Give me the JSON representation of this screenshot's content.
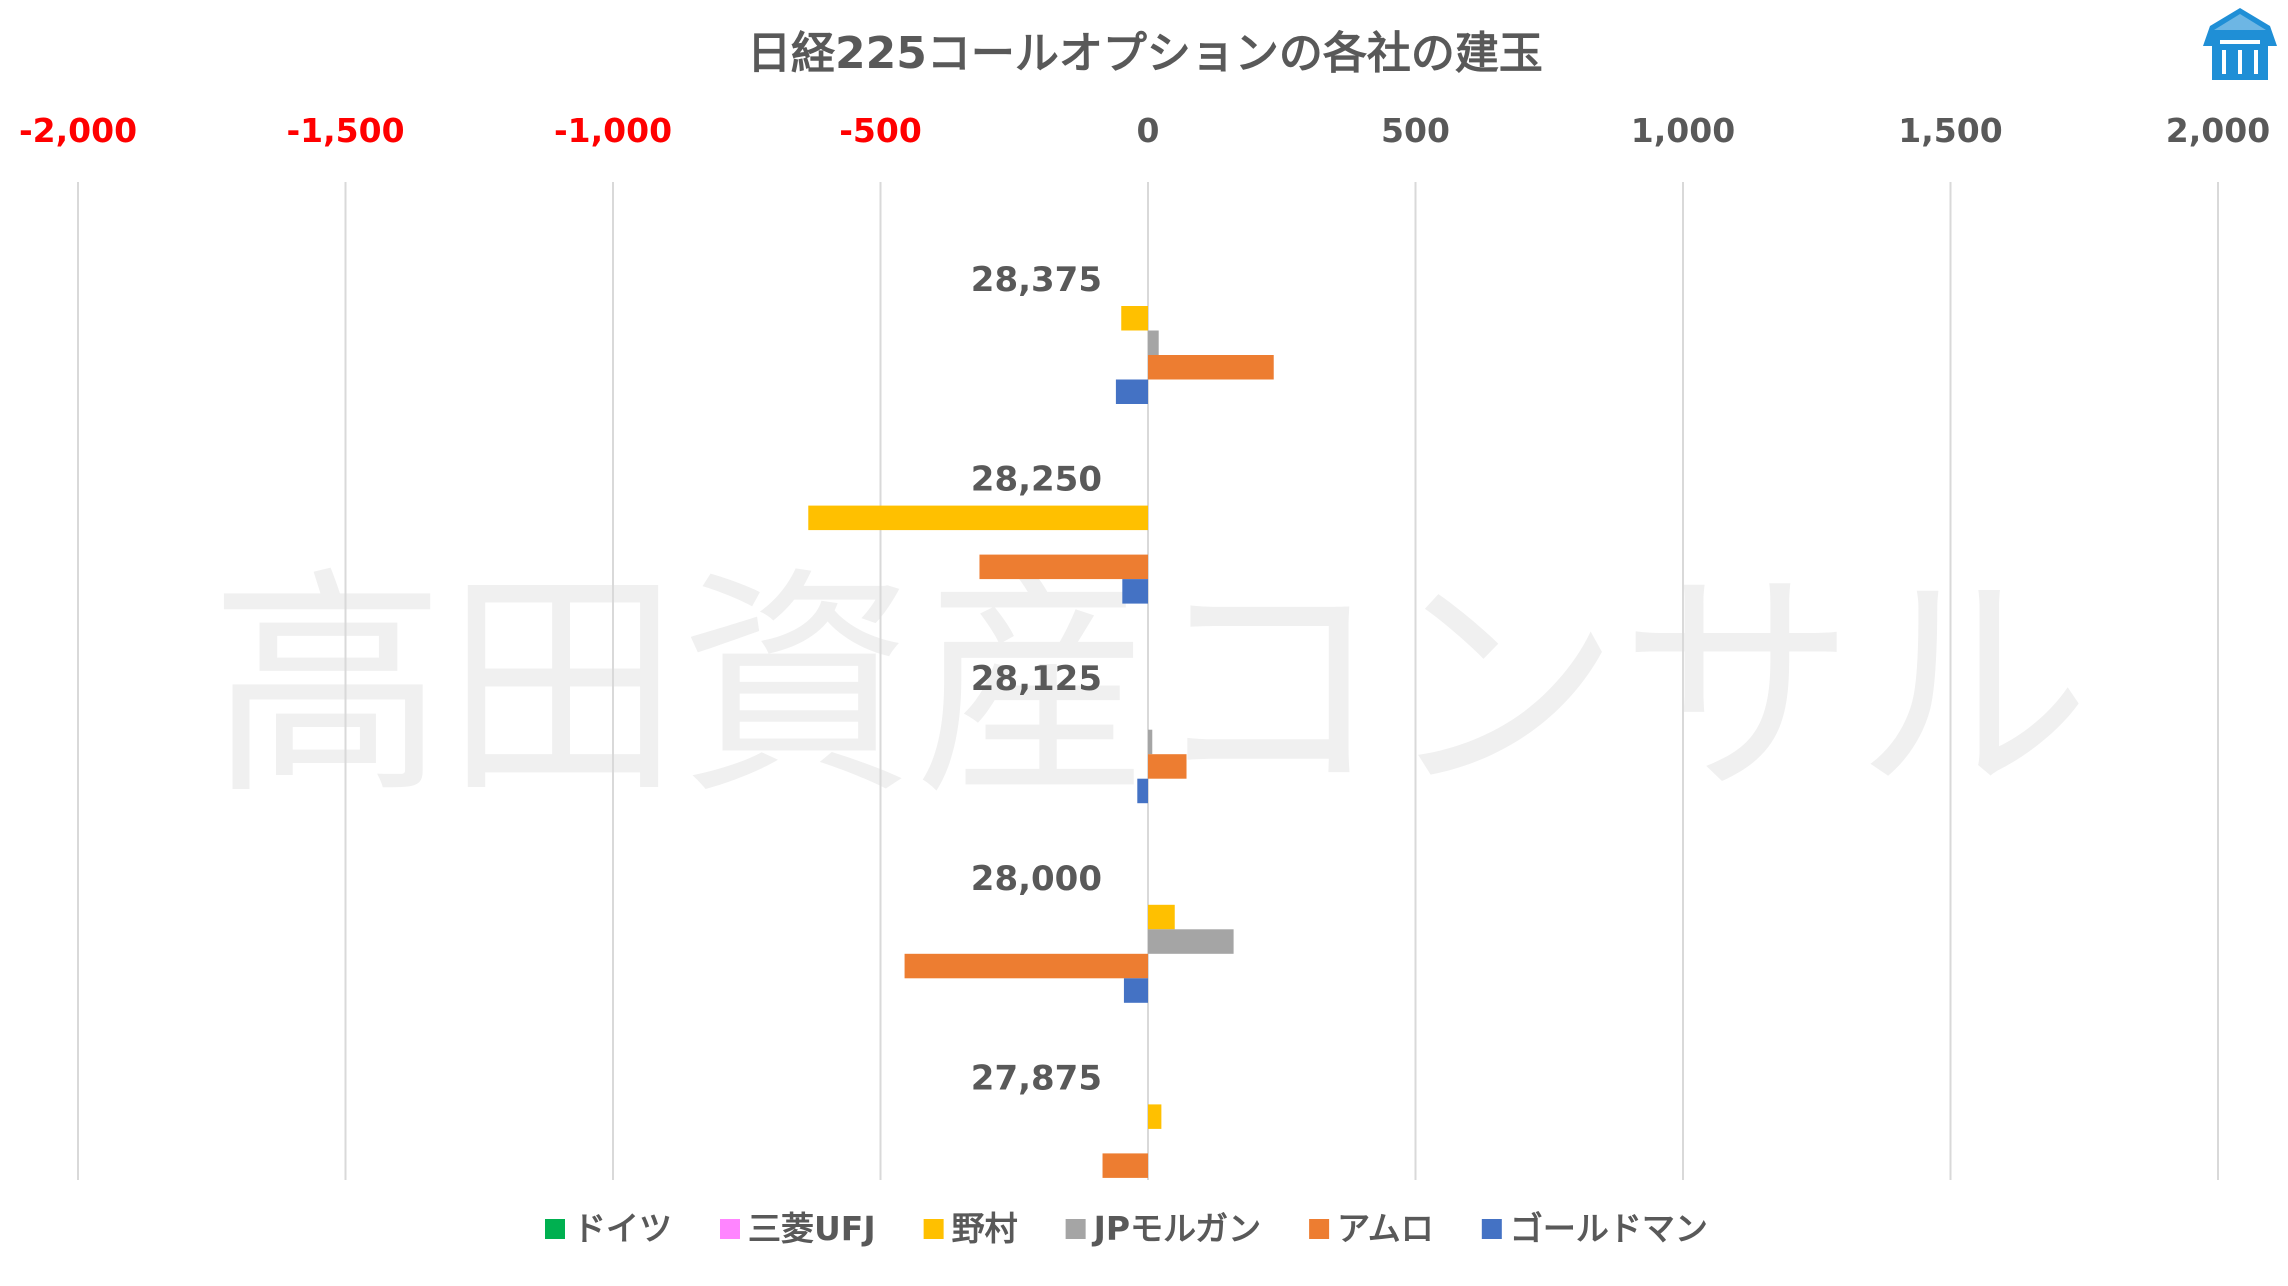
{
  "chart_data": {
    "type": "bar",
    "orientation": "horizontal",
    "title": "日経225コールオプションの各社の建玉",
    "watermark": "高田資産コンサル",
    "categories": [
      "28,375",
      "28,250",
      "28,125",
      "28,000",
      "27,875"
    ],
    "xlim": [
      -2000,
      2000
    ],
    "x_ticks": [
      -2000,
      -1500,
      -1000,
      -500,
      0,
      500,
      1000,
      1500,
      2000
    ],
    "x_tick_labels": [
      "-2,000",
      "-1,500",
      "-1,000",
      "-500",
      "0",
      "500",
      "1,000",
      "1,500",
      "2,000"
    ],
    "negative_tick_color": "#ff0000",
    "positive_tick_color": "#595959",
    "grid": "vertical",
    "legend_position": "bottom",
    "series": [
      {
        "name": "ドイツ",
        "color": "#00b050",
        "values": [
          0,
          0,
          0,
          0,
          0
        ]
      },
      {
        "name": "三菱UFJ",
        "color": "#ff85ff",
        "values": [
          0,
          0,
          0,
          0,
          0
        ]
      },
      {
        "name": "野村",
        "color": "#ffc000",
        "values": [
          -50,
          -635,
          0,
          50,
          25
        ]
      },
      {
        "name": "JPモルガン",
        "color": "#a5a5a5",
        "values": [
          20,
          0,
          8,
          160,
          0
        ]
      },
      {
        "name": "アムロ",
        "color": "#ed7d31",
        "values": [
          235,
          -315,
          72,
          -455,
          -85
        ]
      },
      {
        "name": "ゴールドマン",
        "color": "#4472c4",
        "values": [
          -60,
          -48,
          -20,
          -45,
          0
        ]
      }
    ]
  },
  "logo": {
    "name": "takada-logo",
    "color": "#1f8fd6"
  }
}
